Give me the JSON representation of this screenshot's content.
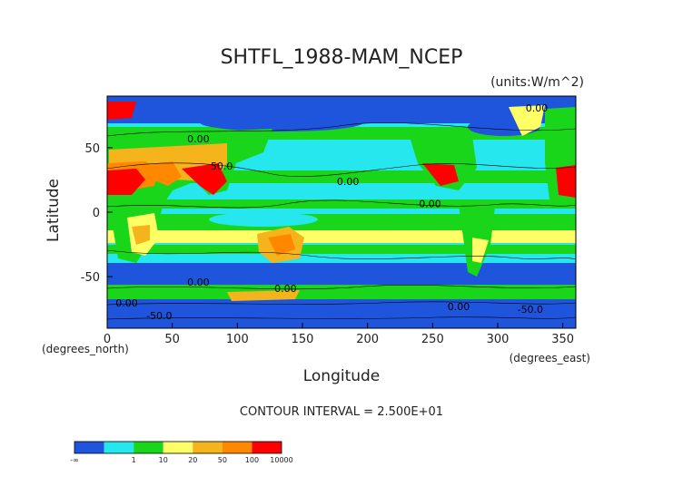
{
  "chart_data": {
    "type": "heatmap",
    "title": "SHTFL_1988-MAM_NCEP",
    "units": "(units:W/m^2)",
    "xlabel": "Longitude",
    "ylabel": "Latitude",
    "x_unit_label": "(degrees_east)",
    "y_unit_label": "(degrees_north)",
    "xlim": [
      0,
      360
    ],
    "ylim": [
      -90,
      90
    ],
    "x_ticks": [
      0,
      50,
      100,
      150,
      200,
      250,
      300,
      350
    ],
    "y_ticks": [
      50,
      0,
      -50
    ],
    "contour_interval": "CONTOUR INTERVAL = 2.500E+01",
    "contour_labels": [
      {
        "text": "0.00",
        "lon": 330,
        "lat": 78
      },
      {
        "text": "0.00",
        "lon": 70,
        "lat": 54
      },
      {
        "text": "50.0",
        "lon": 88,
        "lat": 33
      },
      {
        "text": "0.00",
        "lon": 185,
        "lat": 21
      },
      {
        "text": "0.00",
        "lon": 248,
        "lat": 4
      },
      {
        "text": "0.00",
        "lon": 70,
        "lat": -57
      },
      {
        "text": "0.00",
        "lon": 137,
        "lat": -62
      },
      {
        "text": "0.00",
        "lon": 15,
        "lat": -73
      },
      {
        "text": "0.00",
        "lon": 270,
        "lat": -76
      },
      {
        "text": "-50.0",
        "lon": 40,
        "lat": -83
      },
      {
        "text": "-50.0",
        "lon": 325,
        "lat": -78
      }
    ],
    "colorbar": {
      "colors": [
        "#1f55dc",
        "#27e7ee",
        "#1ad61a",
        "#ffff66",
        "#f5b41b",
        "#ff8800",
        "#ff0000"
      ],
      "tick_labels": [
        "-∞",
        "1",
        "10",
        "20",
        "50",
        "100",
        "10000"
      ]
    }
  }
}
